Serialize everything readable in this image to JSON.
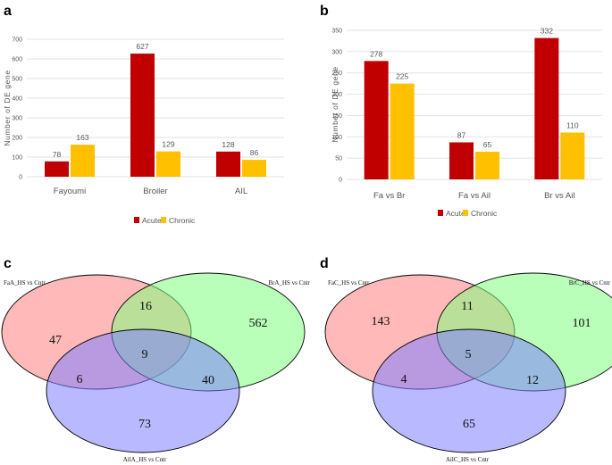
{
  "chart_data": [
    {
      "panel": "a",
      "type": "bar",
      "title": "",
      "xlabel": "",
      "ylabel": "Number of DE gene",
      "ylim": [
        0,
        700
      ],
      "yticks": [
        0,
        100,
        200,
        300,
        400,
        500,
        600,
        700
      ],
      "grid": true,
      "legend": "bottom",
      "categories": [
        "Fayoumi",
        "Broiler",
        "AIL"
      ],
      "series": [
        {
          "name": "Acute",
          "color": "#c00000",
          "values": [
            78,
            627,
            128
          ]
        },
        {
          "name": "Chronic",
          "color": "#ffc000",
          "values": [
            163,
            129,
            86
          ]
        }
      ]
    },
    {
      "panel": "b",
      "type": "bar",
      "title": "",
      "xlabel": "",
      "ylabel": "Number of DE gene",
      "ylim": [
        0,
        350
      ],
      "yticks": [
        0,
        50,
        100,
        150,
        200,
        250,
        300,
        350
      ],
      "grid": true,
      "legend": "bottom",
      "categories": [
        "Fa vs Br",
        "Fa vs Ail",
        "Br vs Ail"
      ],
      "series": [
        {
          "name": "Acute",
          "color": "#c00000",
          "values": [
            278,
            87,
            332
          ]
        },
        {
          "name": "Chronic",
          "color": "#ffc000",
          "values": [
            225,
            65,
            110
          ]
        }
      ]
    },
    {
      "panel": "c",
      "type": "venn",
      "sets": [
        {
          "name": "FaA_HS vs Cntr",
          "color": "#ff8080"
        },
        {
          "name": "BrA_HS vs Cntr",
          "color": "#80ff80"
        },
        {
          "name": "AilA_HS vs Cntr",
          "color": "#8080ff"
        }
      ],
      "regions": {
        "a_only": 47,
        "b_only": 562,
        "c_only": 73,
        "ab": 16,
        "ac": 6,
        "bc": 40,
        "abc": 9
      }
    },
    {
      "panel": "d",
      "type": "venn",
      "sets": [
        {
          "name": "FaC_HS vs Cntr",
          "color": "#ff8080"
        },
        {
          "name": "BrC_HS vs Cntr",
          "color": "#80ff80"
        },
        {
          "name": "AilC_HS vs Cntr",
          "color": "#8080ff"
        }
      ],
      "regions": {
        "a_only": 143,
        "b_only": 101,
        "c_only": 65,
        "ab": 11,
        "ac": 4,
        "bc": 12,
        "abc": 5
      }
    }
  ]
}
